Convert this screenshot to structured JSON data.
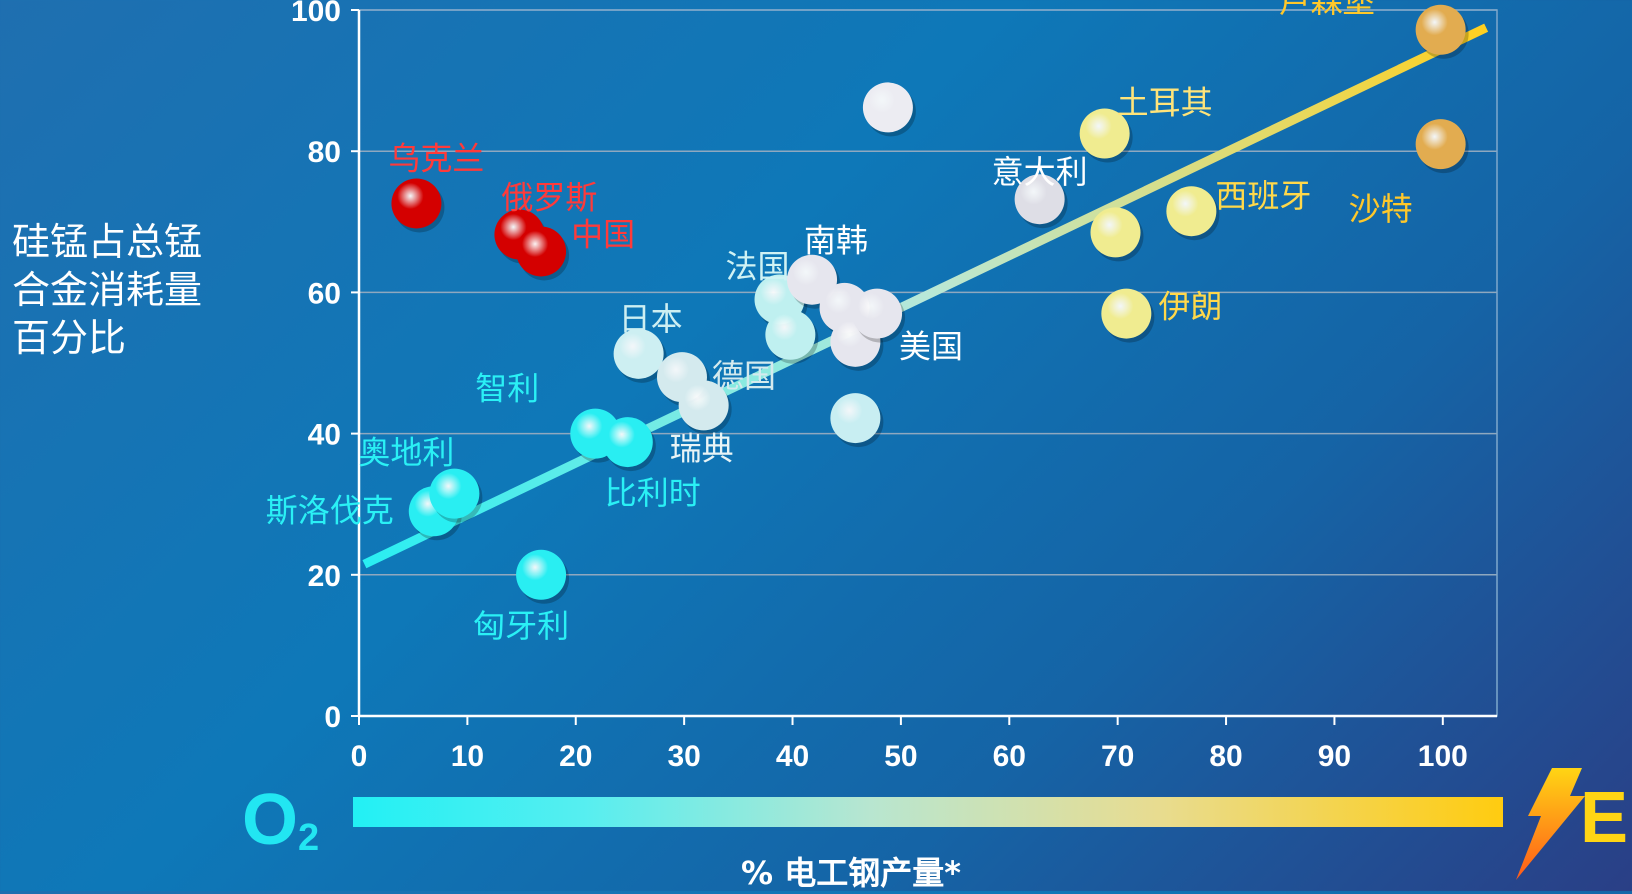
{
  "chart_data": {
    "type": "scatter",
    "title": "",
    "xlabel": "% 电工钢产量*",
    "ylabel_lines": [
      "硅锰占总锰",
      "合金消耗量",
      "百分比"
    ],
    "xlim": [
      0,
      105
    ],
    "ylim": [
      0,
      100
    ],
    "xticks": [
      0,
      10,
      20,
      30,
      40,
      50,
      60,
      70,
      80,
      90,
      100
    ],
    "yticks": [
      0,
      20,
      40,
      60,
      80,
      100
    ],
    "grid": true,
    "points": [
      {
        "label": "乌克兰",
        "x": 5.3,
        "y": 72.6,
        "color": "#d40000",
        "label_color": "#ff3a3a"
      },
      {
        "label": "俄罗斯",
        "x": 14.8,
        "y": 68.2,
        "color": "#d40000",
        "label_color": "#ff3a3a"
      },
      {
        "label": "中国",
        "x": 16.8,
        "y": 65.8,
        "color": "#d40000",
        "label_color": "#ff3a3a"
      },
      {
        "label": "斯洛伐克",
        "x": 6.9,
        "y": 29.0,
        "color": "#29eef2",
        "label_color": "#2af0f5"
      },
      {
        "label": "奥地利",
        "x": 8.8,
        "y": 31.5,
        "color": "#29eef2",
        "label_color": "#2af0f5"
      },
      {
        "label": "匈牙利",
        "x": 16.8,
        "y": 20.0,
        "color": "#29eef2",
        "label_color": "#2af0f5"
      },
      {
        "label": "智利",
        "x": 21.8,
        "y": 40.0,
        "color": "#29eef2",
        "label_color": "#2af0f5"
      },
      {
        "label": "比利时",
        "x": 24.8,
        "y": 38.8,
        "color": "#29eef2",
        "label_color": "#2af0f5"
      },
      {
        "label": "日本",
        "x": 25.8,
        "y": 51.3,
        "color": "#cdeff2",
        "label_color": "#cdeff2"
      },
      {
        "label": "德国",
        "x": 29.8,
        "y": 48.0,
        "color": "#d4eaee",
        "label_color": "#d4eaee"
      },
      {
        "label": "瑞典",
        "x": 31.8,
        "y": 44.0,
        "color": "#d4eaee",
        "label_color": "#e8f4f6"
      },
      {
        "label": "法国",
        "x": 38.8,
        "y": 59.0,
        "color": "#bff0f0",
        "label_color": "#cff2f4"
      },
      {
        "label": "",
        "x": 39.8,
        "y": 54.0,
        "color": "#bff0f0",
        "label_color": "#ffffff"
      },
      {
        "label": "南韩",
        "x": 41.8,
        "y": 61.8,
        "color": "#e6e6ee",
        "label_color": "#ffffff"
      },
      {
        "label": "",
        "x": 44.8,
        "y": 57.8,
        "color": "#e6e6ee",
        "label_color": "#ffffff"
      },
      {
        "label": "",
        "x": 45.8,
        "y": 53.0,
        "color": "#e6e6ee",
        "label_color": "#ffffff"
      },
      {
        "label": "",
        "x": 45.8,
        "y": 42.2,
        "color": "#c8eef2",
        "label_color": "#ffffff"
      },
      {
        "label": "美国",
        "x": 47.8,
        "y": 57.0,
        "color": "#e6e6ee",
        "label_color": "#ffffff"
      },
      {
        "label": "",
        "x": 48.8,
        "y": 86.2,
        "color": "#ececf2",
        "label_color": "#ffffff"
      },
      {
        "label": "意大利",
        "x": 62.8,
        "y": 73.2,
        "color": "#dedee6",
        "label_color": "#ffffff"
      },
      {
        "label": "土耳其",
        "x": 68.8,
        "y": 82.5,
        "color": "#f0ec90",
        "label_color": "#ffe47a"
      },
      {
        "label": "",
        "x": 69.8,
        "y": 68.5,
        "color": "#f0ec90",
        "label_color": "#ffe47a"
      },
      {
        "label": "伊朗",
        "x": 70.8,
        "y": 57.0,
        "color": "#f0ec90",
        "label_color": "#ffd84a"
      },
      {
        "label": "西班牙",
        "x": 76.8,
        "y": 71.5,
        "color": "#f0ec90",
        "label_color": "#ffd84a"
      },
      {
        "label": "卢森堡",
        "x": 99.8,
        "y": 97.2,
        "color": "#e2ac50",
        "label_color": "#ffc82a"
      },
      {
        "label": "沙特",
        "x": 99.8,
        "y": 81.0,
        "color": "#e2ac50",
        "label_color": "#ffc82a"
      }
    ],
    "trendline": {
      "x": [
        0.5,
        104
      ],
      "y": [
        21.5,
        97.5
      ],
      "colors": [
        "#29eef2",
        "#b8e8d8",
        "#ffd020"
      ]
    },
    "left_symbol": "O",
    "left_symbol_sub": "2",
    "right_symbol": "E"
  }
}
